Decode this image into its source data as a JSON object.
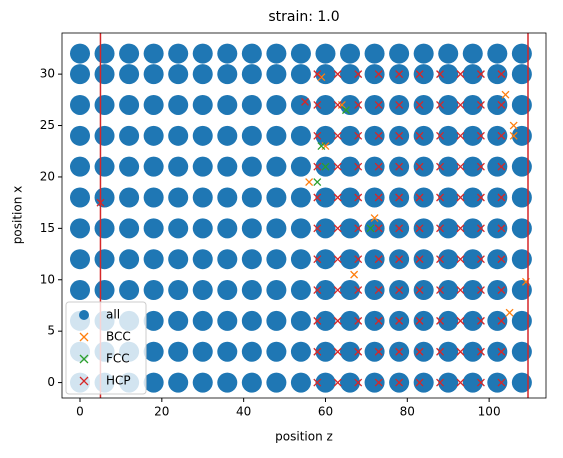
{
  "chart_data": {
    "type": "scatter",
    "title": "strain: 1.0",
    "x_label": "position z",
    "y_label": "position x",
    "xlim": [
      -4.4,
      113.9
    ],
    "ylim": [
      -1.5,
      34
    ],
    "xticks": [
      0,
      20,
      40,
      60,
      80,
      100
    ],
    "yticks": [
      0,
      5,
      10,
      15,
      20,
      25,
      30
    ],
    "vlines": [
      5,
      109.5
    ],
    "vline_color": "#d62728",
    "legend": "lower left",
    "series": [
      {
        "name": "all",
        "marker": "o",
        "color": "#1f77b4",
        "x": [
          0,
          6,
          12,
          18,
          24,
          30,
          36,
          42,
          48,
          54,
          60,
          66,
          72,
          78,
          84,
          90,
          96,
          102,
          108,
          0,
          6,
          12,
          18,
          24,
          30,
          36,
          42,
          48,
          54,
          60,
          66,
          72,
          78,
          84,
          90,
          96,
          102,
          108,
          0,
          6,
          12,
          18,
          24,
          30,
          36,
          42,
          48,
          54,
          60,
          66,
          72,
          78,
          84,
          90,
          96,
          102,
          108,
          0,
          6,
          12,
          18,
          24,
          30,
          36,
          42,
          48,
          54,
          60,
          66,
          72,
          78,
          84,
          90,
          96,
          102,
          108,
          0,
          6,
          12,
          18,
          24,
          30,
          36,
          42,
          48,
          54,
          60,
          66,
          72,
          78,
          84,
          90,
          96,
          102,
          108,
          0,
          6,
          12,
          18,
          24,
          30,
          36,
          42,
          48,
          54,
          60,
          66,
          72,
          78,
          84,
          90,
          96,
          102,
          108,
          0,
          6,
          12,
          18,
          24,
          30,
          36,
          42,
          48,
          54,
          60,
          66,
          72,
          78,
          84,
          90,
          96,
          102,
          108,
          0,
          6,
          12,
          18,
          24,
          30,
          36,
          42,
          48,
          54,
          60,
          66,
          72,
          78,
          84,
          90,
          96,
          102,
          108,
          0,
          6,
          12,
          18,
          24,
          30,
          36,
          42,
          48,
          54,
          60,
          66,
          72,
          78,
          84,
          90,
          96,
          102,
          108,
          0,
          6,
          12,
          18,
          24,
          30,
          36,
          42,
          48,
          54,
          60,
          66,
          72,
          78,
          84,
          90,
          96,
          102,
          108,
          0,
          6,
          12,
          18,
          24,
          30,
          36,
          42,
          48,
          54,
          60,
          66,
          72,
          78,
          84,
          90,
          96,
          102,
          108,
          0,
          6,
          12,
          18,
          24,
          30,
          36,
          42,
          48,
          54,
          60,
          66,
          72,
          78,
          84,
          90,
          96,
          102,
          108
        ],
        "y": [
          0,
          0,
          0,
          0,
          0,
          0,
          0,
          0,
          0,
          0,
          0,
          0,
          0,
          0,
          0,
          0,
          0,
          0,
          0,
          3,
          3,
          3,
          3,
          3,
          3,
          3,
          3,
          3,
          3,
          3,
          3,
          3,
          3,
          3,
          3,
          3,
          3,
          3,
          6,
          6,
          6,
          6,
          6,
          6,
          6,
          6,
          6,
          6,
          6,
          6,
          6,
          6,
          6,
          6,
          6,
          6,
          6,
          9,
          9,
          9,
          9,
          9,
          9,
          9,
          9,
          9,
          9,
          9,
          9,
          9,
          9,
          9,
          9,
          9,
          9,
          9,
          12,
          12,
          12,
          12,
          12,
          12,
          12,
          12,
          12,
          12,
          12,
          12,
          12,
          12,
          12,
          12,
          12,
          12,
          12,
          15,
          15,
          15,
          15,
          15,
          15,
          15,
          15,
          15,
          15,
          15,
          15,
          15,
          15,
          15,
          15,
          15,
          15,
          15,
          18,
          18,
          18,
          18,
          18,
          18,
          18,
          18,
          18,
          18,
          18,
          18,
          18,
          18,
          18,
          18,
          18,
          18,
          18,
          21,
          21,
          21,
          21,
          21,
          21,
          21,
          21,
          21,
          21,
          21,
          21,
          21,
          21,
          21,
          21,
          21,
          21,
          21,
          24,
          24,
          24,
          24,
          24,
          24,
          24,
          24,
          24,
          24,
          24,
          24,
          24,
          24,
          24,
          24,
          24,
          24,
          24,
          27,
          27,
          27,
          27,
          27,
          27,
          27,
          27,
          27,
          27,
          27,
          27,
          27,
          27,
          27,
          27,
          27,
          27,
          27,
          30,
          30,
          30,
          30,
          30,
          30,
          30,
          30,
          30,
          30,
          30,
          30,
          30,
          30,
          30,
          30,
          30,
          30,
          30,
          32,
          32,
          32,
          32,
          32,
          32,
          32,
          32,
          32,
          32,
          32,
          32,
          32,
          32,
          32,
          32,
          32,
          32,
          32
        ]
      },
      {
        "name": "BCC",
        "marker": "x",
        "color": "#ff7f0e",
        "x": [
          59,
          64,
          56,
          72,
          67,
          106,
          106,
          109,
          105,
          104,
          60
        ],
        "y": [
          29.7,
          27,
          19.5,
          16,
          10.5,
          25,
          24,
          9.8,
          6.8,
          28,
          23
        ]
      },
      {
        "name": "FCC",
        "marker": "x",
        "color": "#2ca02c",
        "x": [
          58,
          59,
          65,
          71,
          60
        ],
        "y": [
          19.5,
          23,
          26.5,
          15,
          21
        ]
      },
      {
        "name": "HCP",
        "marker": "x",
        "color": "#d62728",
        "x": [
          58,
          63,
          68,
          73,
          78,
          83,
          88,
          93,
          98,
          103,
          58,
          63,
          68,
          73,
          78,
          83,
          88,
          93,
          98,
          103,
          58,
          63,
          68,
          73,
          78,
          83,
          88,
          93,
          98,
          103,
          58,
          63,
          68,
          73,
          78,
          83,
          88,
          93,
          98,
          103,
          58,
          63,
          68,
          73,
          78,
          83,
          88,
          93,
          98,
          103,
          58,
          63,
          68,
          73,
          78,
          83,
          88,
          93,
          98,
          103,
          58,
          63,
          68,
          73,
          78,
          83,
          88,
          93,
          98,
          103,
          58,
          63,
          68,
          73,
          78,
          83,
          88,
          93,
          98,
          103,
          58,
          63,
          68,
          73,
          78,
          83,
          88,
          93,
          98,
          103,
          58,
          63,
          68,
          73,
          78,
          83,
          88,
          93,
          98,
          103,
          58,
          63,
          68,
          73,
          78,
          83,
          88,
          93,
          98,
          103,
          55,
          5
        ],
        "y": [
          0,
          0,
          0,
          0,
          0,
          0,
          0,
          0,
          0,
          0,
          3,
          3,
          3,
          3,
          3,
          3,
          3,
          3,
          3,
          3,
          6,
          6,
          6,
          6,
          6,
          6,
          6,
          6,
          6,
          6,
          9,
          9,
          9,
          9,
          9,
          9,
          9,
          9,
          9,
          9,
          12,
          12,
          12,
          12,
          12,
          12,
          12,
          12,
          12,
          12,
          15,
          15,
          15,
          15,
          15,
          15,
          15,
          15,
          15,
          15,
          18,
          18,
          18,
          18,
          18,
          18,
          18,
          18,
          18,
          18,
          21,
          21,
          21,
          21,
          21,
          21,
          21,
          21,
          21,
          21,
          24,
          24,
          24,
          24,
          24,
          24,
          24,
          24,
          24,
          24,
          27,
          27,
          27,
          27,
          27,
          27,
          27,
          27,
          27,
          27,
          30,
          30,
          30,
          30,
          30,
          30,
          30,
          30,
          30,
          30,
          27.3,
          17.5
        ]
      }
    ]
  }
}
